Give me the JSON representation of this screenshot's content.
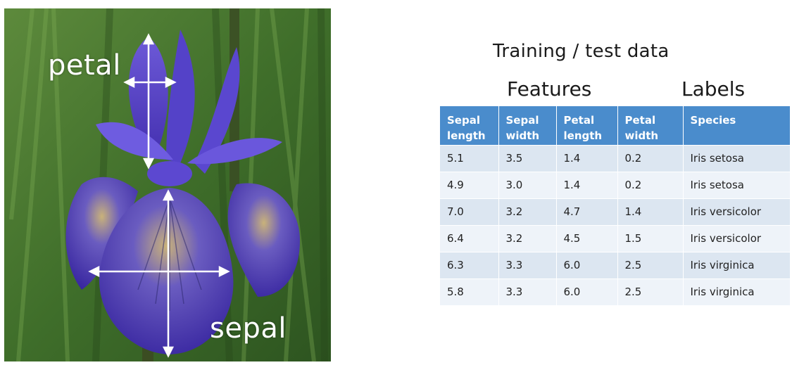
{
  "photo": {
    "petal_label": "petal",
    "sepal_label": "sepal"
  },
  "title": "Training / test data",
  "headings": {
    "features": "Features",
    "labels": "Labels"
  },
  "table": {
    "columns": [
      "Sepal length",
      "Sepal width",
      "Petal length",
      "Petal width",
      "Species"
    ],
    "rows": [
      [
        "5.1",
        "3.5",
        "1.4",
        "0.2",
        "Iris setosa"
      ],
      [
        "4.9",
        "3.0",
        "1.4",
        "0.2",
        "Iris setosa"
      ],
      [
        "7.0",
        "3.2",
        "4.7",
        "1.4",
        "Iris versicolor"
      ],
      [
        "6.4",
        "3.2",
        "4.5",
        "1.5",
        "Iris versicolor"
      ],
      [
        "6.3",
        "3.3",
        "6.0",
        "2.5",
        "Iris virginica"
      ],
      [
        "5.8",
        "3.3",
        "6.0",
        "2.5",
        "Iris virginica"
      ]
    ]
  },
  "colors": {
    "header": "#4a8ccc",
    "row_odd": "#dce6f1",
    "row_even": "#eef3f9"
  }
}
